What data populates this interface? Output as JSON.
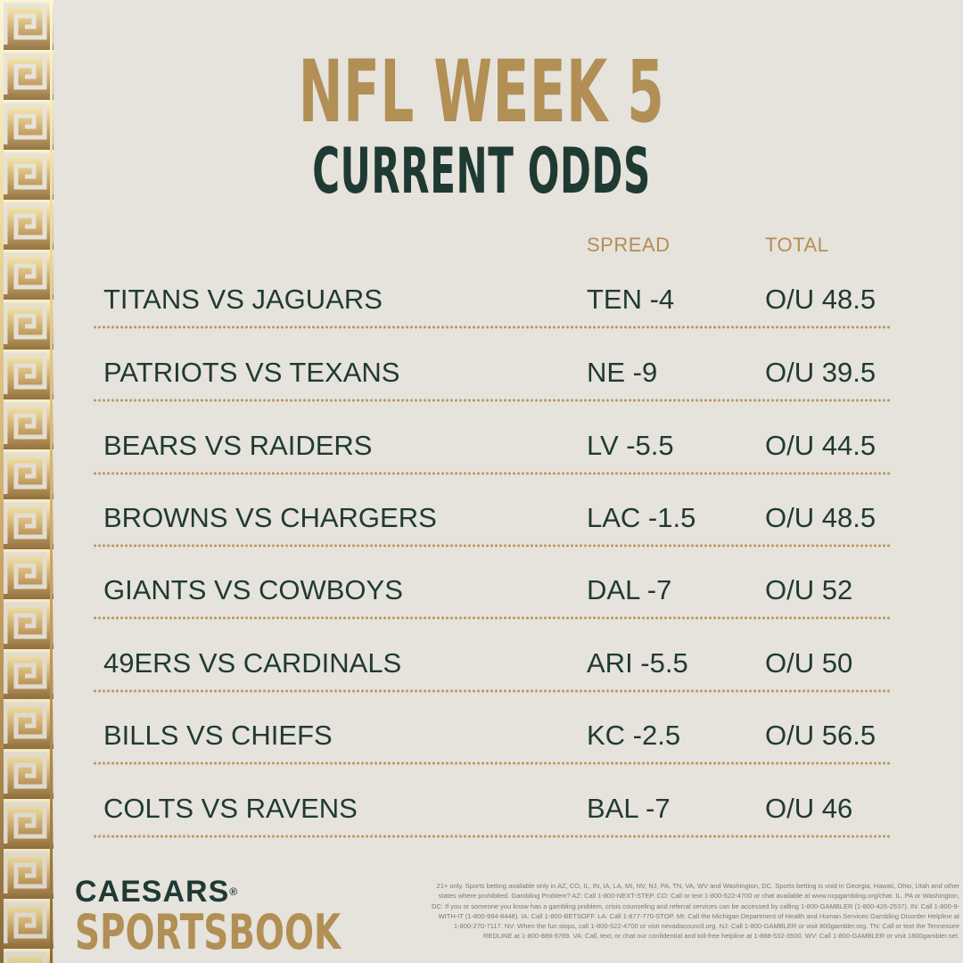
{
  "title": {
    "line1": "NFL WEEK 5",
    "line2": "CURRENT ODDS"
  },
  "columns": {
    "spread": "SPREAD",
    "total": "TOTAL"
  },
  "games": [
    {
      "matchup": "TITANS VS JAGUARS",
      "spread": "TEN -4",
      "total": "O/U 48.5"
    },
    {
      "matchup": "PATRIOTS VS TEXANS",
      "spread": "NE -9",
      "total": "O/U 39.5"
    },
    {
      "matchup": "BEARS VS RAIDERS",
      "spread": "LV -5.5",
      "total": "O/U 44.5"
    },
    {
      "matchup": "BROWNS VS CHARGERS",
      "spread": "LAC -1.5",
      "total": "O/U 48.5"
    },
    {
      "matchup": "GIANTS VS COWBOYS",
      "spread": "DAL -7",
      "total": "O/U 52"
    },
    {
      "matchup": "49ERS VS CARDINALS",
      "spread": "ARI -5.5",
      "total": "O/U 50"
    },
    {
      "matchup": "BILLS VS CHIEFS",
      "spread": "KC -2.5",
      "total": "O/U 56.5"
    },
    {
      "matchup": "COLTS VS RAVENS",
      "spread": "BAL -7",
      "total": "O/U 46"
    }
  ],
  "logo": {
    "top": "CAESARS",
    "registered": "®",
    "bottom": "SPORTSBOOK"
  },
  "disclaimer": "21+ only. Sports betting available only in AZ, CO, IL, IN, IA, LA, MI, NV, NJ, PA, TN, VA, WV and Washington, DC. Sports betting is void in Georgia, Hawaii, Ohio, Utah and other states where prohibited. Gambling Problem? AZ: Call 1-800-NEXT-STEP. CO: Call or text 1-800-522-4700 or chat available at www.ncpgambling.org/chat. IL, PA or Washington, DC: If you or someone you know has a gambling problem, crisis counseling and referral services can be accessed by calling 1-800-GAMBLER (1-800-426-2537). IN: Call 1-800-9-WITH-IT (1-800-994-8448). IA: Call 1-800-BETSOFF. LA: Call 1-877-770-STOP. MI: Call the Michigan Department of Health and Human Services Gambling Disorder Helpline at 1-800-270-7117. NV: When the fun stops, call 1-800-522-4700 or visit nevadacouncil.org. NJ: Call 1-800-GAMBLER or visit 800gambler.org. TN: Call or text the Tennessee REDLINE at 1-800-889-9789. VA: Call, text, or chat our confidential and toll-free helpline at 1-888-532-3500. WV: Call 1-800-GAMBLER or visit 1800gambler.net.",
  "colors": {
    "background": "#e6e2dc",
    "gold": "#b18f55",
    "dark_green": "#1f3a33"
  },
  "decoration": "greek-key-border"
}
